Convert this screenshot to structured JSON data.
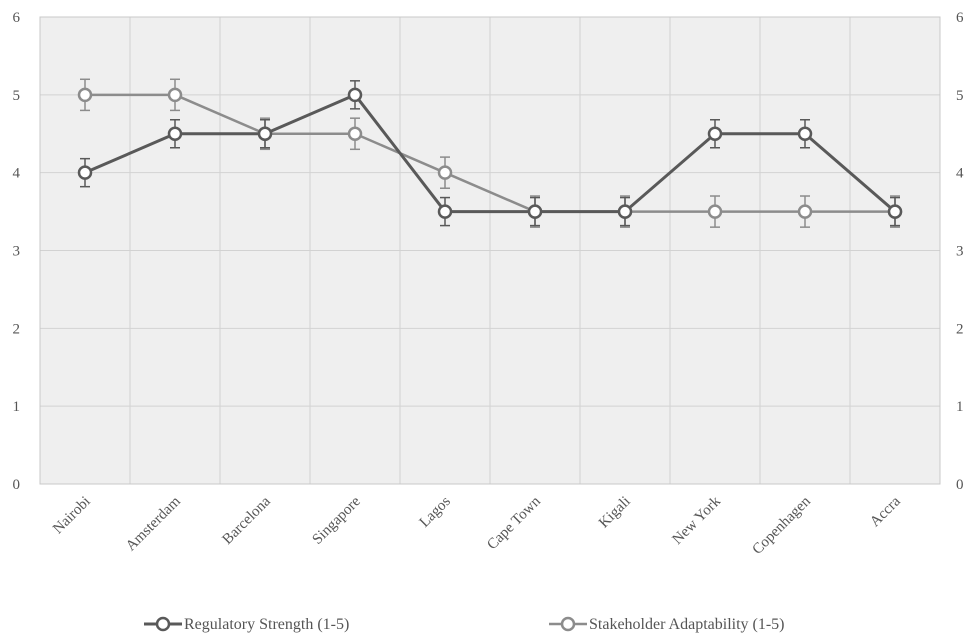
{
  "chart_data": {
    "type": "line",
    "title": "",
    "xlabel": "",
    "ylabel": "",
    "categories": [
      "Nairobi",
      "Amsterdam",
      "Barcelona",
      "Singapore",
      "Lagos",
      "Cape Town",
      "Kigali",
      "New York",
      "Copenhagen",
      "Accra"
    ],
    "ylim": [
      0,
      6
    ],
    "yticks": [
      "0",
      "1",
      "2",
      "3",
      "4",
      "5",
      "6"
    ],
    "secondary_yticks": [
      "0",
      "1",
      "2",
      "3",
      "4",
      "5",
      "6"
    ],
    "grid": true,
    "legend_position": "bottom",
    "series": [
      {
        "name": "Regulatory Strength (1-5)",
        "color": "#595959",
        "values": [
          4.0,
          4.5,
          4.5,
          5.0,
          3.5,
          3.5,
          3.5,
          4.5,
          4.5,
          3.5
        ],
        "error": [
          0.18,
          0.18,
          0.18,
          0.18,
          0.18,
          0.18,
          0.18,
          0.18,
          0.18,
          0.18
        ]
      },
      {
        "name": "Stakeholder Adaptability (1-5)",
        "color": "#8c8c8c",
        "values": [
          5.0,
          5.0,
          4.5,
          4.5,
          4.0,
          3.5,
          3.5,
          3.5,
          3.5,
          3.5
        ],
        "error": [
          0.2,
          0.2,
          0.2,
          0.2,
          0.2,
          0.2,
          0.2,
          0.2,
          0.2,
          0.2
        ]
      }
    ]
  }
}
